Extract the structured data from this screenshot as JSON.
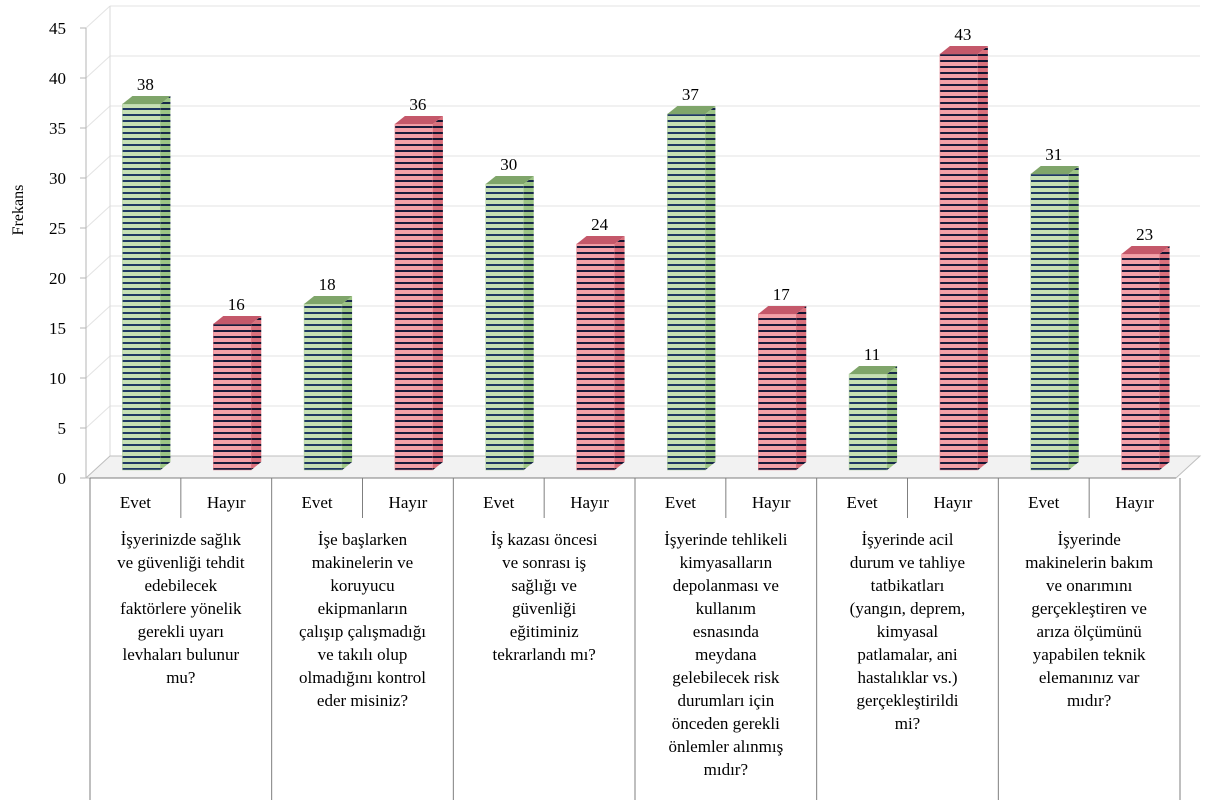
{
  "chart_data": {
    "type": "bar",
    "ylabel": "Frekans",
    "ylim": [
      0,
      45
    ],
    "yticks": [
      0,
      5,
      10,
      15,
      20,
      25,
      30,
      35,
      40,
      45
    ],
    "grid": true,
    "sub_categories": [
      "Evet",
      "Hayır",
      "Evet",
      "Hayır",
      "Evet",
      "Hayır",
      "Evet",
      "Hayır",
      "Evet",
      "Hayır",
      "Evet",
      "Hayır"
    ],
    "groups": [
      "İşyerinizde sağlık\nve güvenliği tehdit\nedebilecek\nfaktörlere yönelik\ngerekli uyarı\nlevhaları bulunur\nmu?",
      "İşe başlarken\nmakinelerin ve\nkoruyucu\nekipmanların\nçalışıp çalışmadığı\nve takılı olup\nolmadığını kontrol\neder misiniz?",
      "İş kazası öncesi\nve sonrası iş\nsağlığı ve\ngüvenliği\neğitiminiz\ntekrarlandı mı?",
      "İşyerinde tehlikeli\nkimyasalların\ndepolanması ve\nkullanım\nesnasında\nmeydana\ngelebilecek risk\ndurumları için\nönceden gerekli\nönlemler alınmış\nmıdır?",
      "İşyerinde acil\ndurum ve tahliye\ntatbikatları\n(yangın, deprem,\nkimyasal\npatlamalar, ani\nhastalıklar vs.)\ngerçekleştirildi\nmi?",
      "İşyerinde\nmakinelerin bakım\nve onarımını\ngerçekleştiren ve\narıza ölçümünü\nyapabilen teknik\nelemanınız var\nmıdır?"
    ],
    "values": [
      38,
      16,
      18,
      36,
      30,
      24,
      37,
      17,
      11,
      43,
      31,
      23
    ],
    "colors": {
      "evet": "#c6e0b4",
      "hayir": "#f4a0a8",
      "stripe": "#1f3864",
      "hayir_stripe": "#1a1a3a"
    }
  }
}
